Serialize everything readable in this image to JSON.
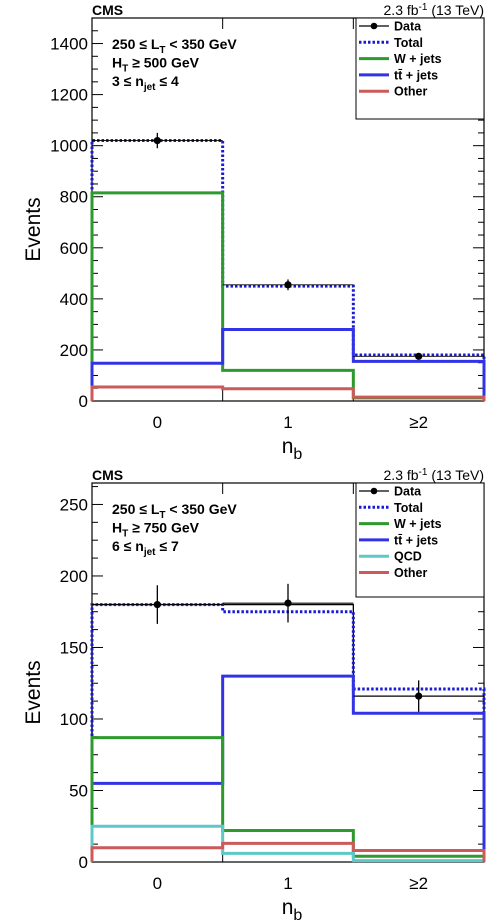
{
  "chart_data": [
    {
      "type": "histogram",
      "experiment": "CMS",
      "lumi": "2.3 fb",
      "lumi_sup": "-1",
      "energy": "(13 TeV)",
      "ylabel": "Events",
      "xlabel_main": "n",
      "xlabel_sub": "b",
      "ylim": [
        0,
        1500
      ],
      "yticks": [
        0,
        200,
        400,
        600,
        800,
        1000,
        1200,
        1400
      ],
      "categories": [
        "0",
        "1",
        "≥2"
      ],
      "cuts": [
        {
          "pre": "250 ≤ L",
          "sub": "T",
          "post": " < 350 GeV"
        },
        {
          "pre": "H",
          "sub": "T",
          "post": " ≥ 500 GeV"
        },
        {
          "pre": "3 ≤ n",
          "sub": "jet",
          "post": " ≤ 4"
        }
      ],
      "legend": [
        {
          "label": "Data",
          "kind": "data",
          "color": "#000000"
        },
        {
          "label": "Total",
          "kind": "dotted",
          "color": "#1a1ad6"
        },
        {
          "label": "W + jets",
          "kind": "line",
          "color": "#2e9a2e"
        },
        {
          "label": "tt̄ + jets",
          "kind": "line",
          "color": "#3333e6"
        },
        {
          "label": "Other",
          "kind": "line",
          "color": "#cc5a5a"
        }
      ],
      "data": {
        "values": [
          1020,
          455,
          175
        ],
        "errors": [
          30,
          21,
          13
        ]
      },
      "series": [
        {
          "name": "Total",
          "values": [
            1020,
            450,
            180
          ],
          "color": "#1a1ad6",
          "dotted": true
        },
        {
          "name": "W + jets",
          "values": [
            815,
            120,
            12
          ],
          "color": "#2e9a2e"
        },
        {
          "name": "tt̄ + jets",
          "values": [
            148,
            280,
            155
          ],
          "color": "#3333e6"
        },
        {
          "name": "Other",
          "values": [
            55,
            48,
            15
          ],
          "color": "#cc5a5a"
        }
      ]
    },
    {
      "type": "histogram",
      "experiment": "CMS",
      "lumi": "2.3 fb",
      "lumi_sup": "-1",
      "energy": "(13 TeV)",
      "ylabel": "Events",
      "xlabel_main": "n",
      "xlabel_sub": "b",
      "ylim": [
        0,
        265
      ],
      "yticks": [
        0,
        50,
        100,
        150,
        200,
        250
      ],
      "categories": [
        "0",
        "1",
        "≥2"
      ],
      "cuts": [
        {
          "pre": "250 ≤ L",
          "sub": "T",
          "post": " < 350 GeV"
        },
        {
          "pre": "H",
          "sub": "T",
          "post": " ≥ 750 GeV"
        },
        {
          "pre": "6 ≤ n",
          "sub": "jet",
          "post": " ≤ 7"
        }
      ],
      "legend": [
        {
          "label": "Data",
          "kind": "data",
          "color": "#000000"
        },
        {
          "label": "Total",
          "kind": "dotted",
          "color": "#1a1ad6"
        },
        {
          "label": "W + jets",
          "kind": "line",
          "color": "#2e9a2e"
        },
        {
          "label": "tt̄ + jets",
          "kind": "line",
          "color": "#3333e6"
        },
        {
          "label": "QCD",
          "kind": "line",
          "color": "#5cc8c8"
        },
        {
          "label": "Other",
          "kind": "line",
          "color": "#cc5a5a"
        }
      ],
      "data": {
        "values": [
          180,
          181,
          116
        ],
        "errors": [
          13.5,
          13.5,
          11
        ]
      },
      "series": [
        {
          "name": "Data (line)",
          "values": [
            180,
            180,
            116
          ],
          "color": "#000000",
          "thin": true
        },
        {
          "name": "Total",
          "values": [
            180,
            175,
            121
          ],
          "color": "#1a1ad6",
          "dotted": true
        },
        {
          "name": "tt̄ + jets",
          "values": [
            55,
            130,
            104
          ],
          "color": "#3333e6"
        },
        {
          "name": "W + jets",
          "values": [
            87,
            22,
            4
          ],
          "color": "#2e9a2e"
        },
        {
          "name": "QCD",
          "values": [
            25,
            6,
            1
          ],
          "color": "#5cc8c8"
        },
        {
          "name": "Other",
          "values": [
            10,
            13,
            8
          ],
          "color": "#cc5a5a"
        }
      ]
    }
  ]
}
